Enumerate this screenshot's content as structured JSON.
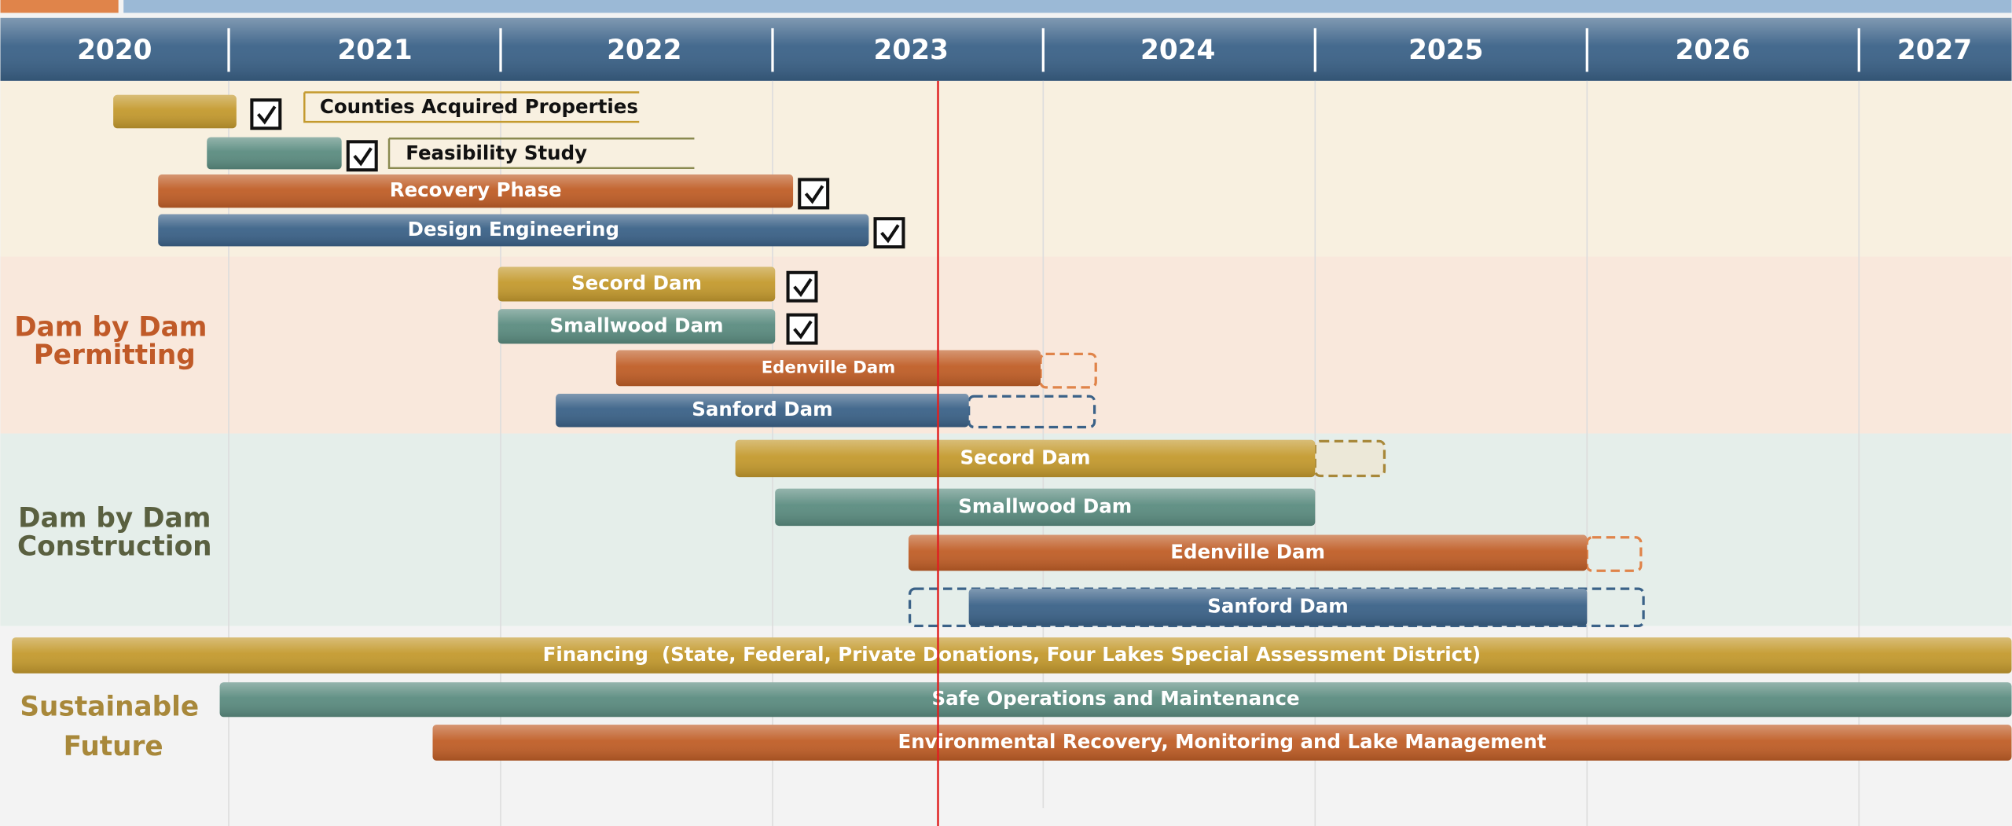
{
  "timeline": {
    "years": [
      "2020",
      "2021",
      "2022",
      "2023",
      "2024",
      "2025",
      "2026",
      "2027"
    ],
    "sections": [
      {
        "label": [],
        "tasks": [
          {
            "label": "Counties Acquired Properties"
          },
          {
            "label": "Feasibility Study"
          },
          {
            "label": "Recovery Phase"
          },
          {
            "label": "Design Engineering"
          }
        ]
      },
      {
        "label": [
          "Dam by Dam",
          "Permitting"
        ],
        "tasks": [
          {
            "label": "Secord Dam"
          },
          {
            "label": "Smallwood Dam"
          },
          {
            "label": "Edenville Dam"
          },
          {
            "label": "Sanford Dam"
          }
        ]
      },
      {
        "label": [
          "Dam by Dam",
          "Construction"
        ],
        "tasks": [
          {
            "label": "Secord Dam"
          },
          {
            "label": "Smallwood Dam"
          },
          {
            "label": "Edenville Dam"
          },
          {
            "label": "Sanford Dam"
          }
        ]
      },
      {
        "label": [
          "Sustainable",
          "Future"
        ],
        "tasks": [
          {
            "label": "Financing  (State, Federal, Private Donations, Four Lakes Special Assessment District)"
          },
          {
            "label": "Safe Operations and Maintenance"
          },
          {
            "label": "Environmental Recovery, Monitoring and Lake Management"
          }
        ]
      }
    ]
  }
}
